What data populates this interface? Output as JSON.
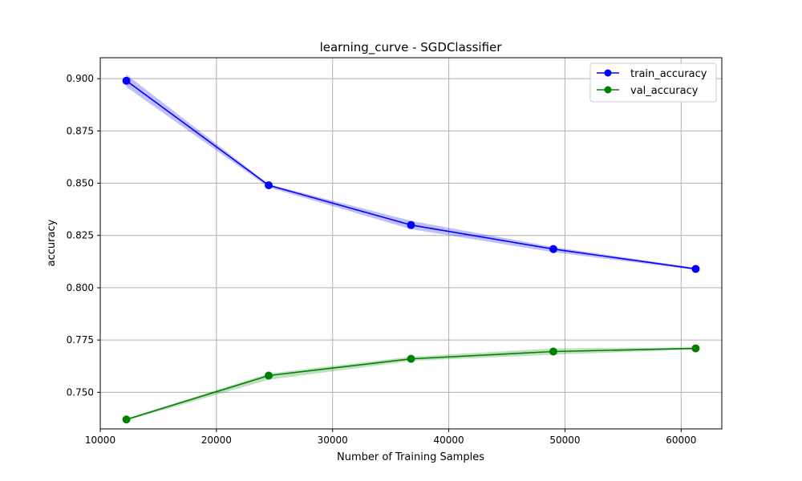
{
  "chart_data": {
    "type": "line",
    "title": "learning_curve - SGDClassifier",
    "xlabel": "Number of Training Samples",
    "ylabel": "accuracy",
    "xlim": [
      10000,
      63500
    ],
    "ylim": [
      0.7325,
      0.91
    ],
    "xticks": [
      10000,
      20000,
      30000,
      40000,
      50000,
      60000
    ],
    "xtick_labels": [
      "10000",
      "20000",
      "30000",
      "40000",
      "50000",
      "60000"
    ],
    "yticks": [
      0.75,
      0.775,
      0.8,
      0.825,
      0.85,
      0.875,
      0.9
    ],
    "ytick_labels": [
      "0.750",
      "0.775",
      "0.800",
      "0.825",
      "0.850",
      "0.875",
      "0.900"
    ],
    "grid": true,
    "legend_position": "top-right",
    "x": [
      12250,
      24500,
      36750,
      49000,
      61250
    ],
    "series": [
      {
        "name": "train_accuracy",
        "color": "#0000ff",
        "band_color": "#0000ff",
        "values": [
          0.899,
          0.849,
          0.83,
          0.8185,
          0.809
        ],
        "lower": [
          0.896,
          0.848,
          0.828,
          0.817,
          0.8085
        ],
        "upper": [
          0.902,
          0.8495,
          0.832,
          0.8195,
          0.8095
        ]
      },
      {
        "name": "val_accuracy",
        "color": "#008000",
        "band_color": "#008000",
        "values": [
          0.737,
          0.758,
          0.766,
          0.7695,
          0.771
        ],
        "lower": [
          0.7365,
          0.756,
          0.765,
          0.768,
          0.7705
        ],
        "upper": [
          0.7375,
          0.759,
          0.767,
          0.771,
          0.7715
        ]
      }
    ]
  }
}
